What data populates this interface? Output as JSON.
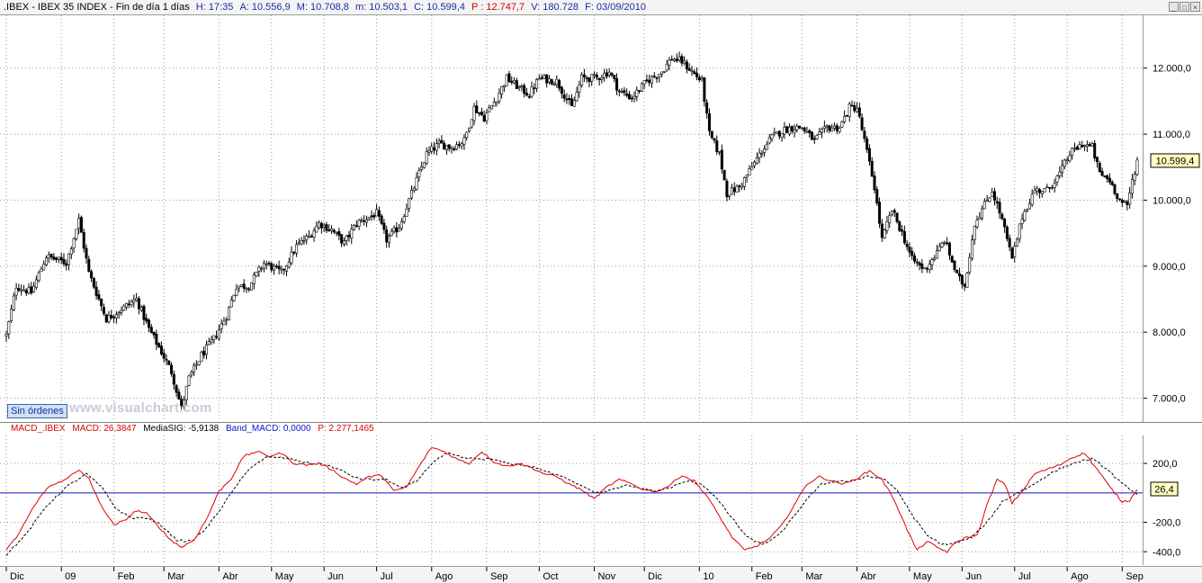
{
  "header": {
    "symbol": ".IBEX",
    "name": "IBEX 35 INDEX",
    "period": "Fin de día 1 días",
    "time": "H: 17:35",
    "open": "A: 10.556,9",
    "high": "M: 10.708,8",
    "low": "m: 10.503,1",
    "close": "C: 10.599,4",
    "p": "P : 12.747,7",
    "volume": "V: 180.728",
    "date": "F: 03/09/2010"
  },
  "window_buttons": [
    "_",
    "□",
    "×"
  ],
  "order_badge": "Sin órdenes",
  "watermark": "www.visualchart.com",
  "current_price_label": "10.599,4",
  "macd_header": {
    "title": "MACD_.IBEX",
    "macd": "MACD: 26,3847",
    "signal": "MediaSIG: -5,9138",
    "band": "Band_MACD: 0,0000",
    "p": "P: 2.277,1465"
  },
  "current_macd_label": "26,4",
  "colors": {
    "candle": "#000000",
    "macd_line": "#e00000",
    "signal_line": "#000000",
    "band_line": "#1010d0",
    "grid": "#9a9a9a",
    "label_bg": "#ffffc0"
  },
  "chart_data": [
    {
      "type": "candlestick",
      "title": "IBEX 35 INDEX",
      "y_ticks": [
        "12.000,0",
        "11.000,0",
        "10.000,0",
        "9.000,0",
        "8.000,0",
        "7.000,0"
      ],
      "y_tick_values": [
        12000,
        11000,
        10000,
        9000,
        8000,
        7000
      ],
      "ylim": [
        6640,
        12800
      ],
      "x_labels": [
        "Dic",
        "09",
        "Feb",
        "Mar",
        "Abr",
        "May",
        "Jun",
        "Jul",
        "Ago",
        "Sep",
        "Oct",
        "Nov",
        "Dic",
        "10",
        "Feb",
        "Mar",
        "Abr",
        "May",
        "Jun",
        "Jul",
        "Ago",
        "Sep"
      ],
      "x_label_days": [
        0,
        22,
        43,
        63,
        85,
        106,
        127,
        148,
        170,
        192,
        213,
        235,
        255,
        277,
        298,
        318,
        340,
        361,
        382,
        403,
        424,
        446
      ],
      "total_days": 452,
      "last_close": 10599.4,
      "grid": true,
      "anchors": [
        [
          0,
          7950
        ],
        [
          4,
          8700
        ],
        [
          10,
          8600
        ],
        [
          16,
          9150
        ],
        [
          24,
          9050
        ],
        [
          29,
          9700
        ],
        [
          33,
          8900
        ],
        [
          40,
          8200
        ],
        [
          48,
          8400
        ],
        [
          52,
          8500
        ],
        [
          57,
          8050
        ],
        [
          62,
          7700
        ],
        [
          66,
          7400
        ],
        [
          70,
          6850
        ],
        [
          73,
          7300
        ],
        [
          78,
          7650
        ],
        [
          83,
          7900
        ],
        [
          88,
          8250
        ],
        [
          92,
          8700
        ],
        [
          97,
          8700
        ],
        [
          103,
          9050
        ],
        [
          110,
          8900
        ],
        [
          116,
          9300
        ],
        [
          121,
          9450
        ],
        [
          125,
          9650
        ],
        [
          130,
          9550
        ],
        [
          135,
          9350
        ],
        [
          140,
          9650
        ],
        [
          148,
          9800
        ],
        [
          152,
          9400
        ],
        [
          157,
          9600
        ],
        [
          163,
          10200
        ],
        [
          168,
          10700
        ],
        [
          173,
          10850
        ],
        [
          178,
          10800
        ],
        [
          183,
          10900
        ],
        [
          187,
          11400
        ],
        [
          191,
          11250
        ],
        [
          196,
          11550
        ],
        [
          200,
          11850
        ],
        [
          205,
          11700
        ],
        [
          209,
          11600
        ],
        [
          213,
          11850
        ],
        [
          220,
          11800
        ],
        [
          226,
          11400
        ],
        [
          230,
          11850
        ],
        [
          236,
          11850
        ],
        [
          241,
          11950
        ],
        [
          245,
          11650
        ],
        [
          250,
          11550
        ],
        [
          256,
          11800
        ],
        [
          262,
          11950
        ],
        [
          266,
          12150
        ],
        [
          270,
          12100
        ],
        [
          274,
          11950
        ],
        [
          278,
          11800
        ],
        [
          281,
          11000
        ],
        [
          285,
          10700
        ],
        [
          288,
          10100
        ],
        [
          293,
          10200
        ],
        [
          298,
          10500
        ],
        [
          302,
          10750
        ],
        [
          306,
          10950
        ],
        [
          310,
          11050
        ],
        [
          314,
          11100
        ],
        [
          318,
          11100
        ],
        [
          323,
          10900
        ],
        [
          328,
          11100
        ],
        [
          333,
          11100
        ],
        [
          337,
          11400
        ],
        [
          340,
          11400
        ],
        [
          343,
          10900
        ],
        [
          347,
          10200
        ],
        [
          350,
          9400
        ],
        [
          354,
          9850
        ],
        [
          358,
          9500
        ],
        [
          362,
          9100
        ],
        [
          367,
          8950
        ],
        [
          372,
          9200
        ],
        [
          375,
          9400
        ],
        [
          380,
          8850
        ],
        [
          383,
          8700
        ],
        [
          387,
          9650
        ],
        [
          392,
          10000
        ],
        [
          394,
          10150
        ],
        [
          398,
          9700
        ],
        [
          402,
          9100
        ],
        [
          406,
          9750
        ],
        [
          411,
          10150
        ],
        [
          416,
          10150
        ],
        [
          421,
          10400
        ],
        [
          425,
          10700
        ],
        [
          430,
          10850
        ],
        [
          434,
          10800
        ],
        [
          437,
          10400
        ],
        [
          441,
          10300
        ],
        [
          445,
          10000
        ],
        [
          448,
          9900
        ],
        [
          450,
          10300
        ],
        [
          452,
          10599
        ]
      ]
    },
    {
      "type": "line",
      "title": "MACD_.IBEX",
      "y_ticks": [
        "200,0",
        "-200,0",
        "-400,0"
      ],
      "y_tick_values": [
        200,
        -200,
        -400
      ],
      "ylim": [
        -490,
        390
      ],
      "band_value": 0,
      "last_macd": 26.3847,
      "last_signal": -5.9138,
      "series": [
        {
          "name": "MACD",
          "anchors": [
            [
              0,
              -390
            ],
            [
              5,
              -280
            ],
            [
              10,
              -120
            ],
            [
              16,
              30
            ],
            [
              22,
              80
            ],
            [
              29,
              150
            ],
            [
              33,
              100
            ],
            [
              37,
              -60
            ],
            [
              43,
              -220
            ],
            [
              47,
              -190
            ],
            [
              52,
              -120
            ],
            [
              56,
              -140
            ],
            [
              61,
              -230
            ],
            [
              65,
              -310
            ],
            [
              70,
              -370
            ],
            [
              75,
              -320
            ],
            [
              80,
              -180
            ],
            [
              85,
              10
            ],
            [
              90,
              100
            ],
            [
              95,
              250
            ],
            [
              100,
              280
            ],
            [
              105,
              250
            ],
            [
              110,
              270
            ],
            [
              115,
              200
            ],
            [
              120,
              190
            ],
            [
              125,
              200
            ],
            [
              130,
              160
            ],
            [
              135,
              100
            ],
            [
              140,
              60
            ],
            [
              145,
              110
            ],
            [
              150,
              120
            ],
            [
              155,
              10
            ],
            [
              160,
              40
            ],
            [
              165,
              180
            ],
            [
              170,
              310
            ],
            [
              175,
              280
            ],
            [
              180,
              230
            ],
            [
              185,
              200
            ],
            [
              190,
              280
            ],
            [
              195,
              210
            ],
            [
              200,
              180
            ],
            [
              205,
              200
            ],
            [
              210,
              170
            ],
            [
              215,
              130
            ],
            [
              220,
              110
            ],
            [
              225,
              60
            ],
            [
              230,
              20
            ],
            [
              235,
              -40
            ],
            [
              240,
              40
            ],
            [
              245,
              90
            ],
            [
              250,
              60
            ],
            [
              255,
              20
            ],
            [
              260,
              10
            ],
            [
              265,
              50
            ],
            [
              270,
              120
            ],
            [
              275,
              80
            ],
            [
              280,
              -20
            ],
            [
              285,
              -160
            ],
            [
              290,
              -300
            ],
            [
              295,
              -390
            ],
            [
              300,
              -360
            ],
            [
              305,
              -310
            ],
            [
              310,
              -220
            ],
            [
              315,
              -80
            ],
            [
              320,
              60
            ],
            [
              325,
              110
            ],
            [
              330,
              80
            ],
            [
              335,
              60
            ],
            [
              340,
              100
            ],
            [
              345,
              150
            ],
            [
              350,
              90
            ],
            [
              355,
              -50
            ],
            [
              360,
              -250
            ],
            [
              364,
              -390
            ],
            [
              368,
              -330
            ],
            [
              372,
              -370
            ],
            [
              376,
              -400
            ],
            [
              380,
              -330
            ],
            [
              384,
              -300
            ],
            [
              388,
              -290
            ],
            [
              392,
              -80
            ],
            [
              396,
              90
            ],
            [
              399,
              60
            ],
            [
              402,
              -70
            ],
            [
              406,
              10
            ],
            [
              411,
              130
            ],
            [
              416,
              160
            ],
            [
              421,
              190
            ],
            [
              426,
              240
            ],
            [
              431,
              270
            ],
            [
              436,
              160
            ],
            [
              441,
              40
            ],
            [
              446,
              -60
            ],
            [
              449,
              -50
            ],
            [
              452,
              26
            ]
          ]
        },
        {
          "name": "MediaSIG",
          "anchors": [
            [
              0,
              -420
            ],
            [
              8,
              -280
            ],
            [
              16,
              -90
            ],
            [
              24,
              40
            ],
            [
              32,
              130
            ],
            [
              38,
              40
            ],
            [
              44,
              -110
            ],
            [
              50,
              -170
            ],
            [
              56,
              -170
            ],
            [
              62,
              -220
            ],
            [
              68,
              -320
            ],
            [
              74,
              -330
            ],
            [
              80,
              -240
            ],
            [
              86,
              -100
            ],
            [
              92,
              50
            ],
            [
              98,
              180
            ],
            [
              104,
              240
            ],
            [
              110,
              240
            ],
            [
              116,
              220
            ],
            [
              122,
              200
            ],
            [
              128,
              190
            ],
            [
              134,
              150
            ],
            [
              140,
              100
            ],
            [
              146,
              90
            ],
            [
              152,
              90
            ],
            [
              158,
              30
            ],
            [
              164,
              80
            ],
            [
              170,
              200
            ],
            [
              176,
              270
            ],
            [
              182,
              240
            ],
            [
              188,
              230
            ],
            [
              194,
              230
            ],
            [
              200,
              200
            ],
            [
              206,
              190
            ],
            [
              212,
              170
            ],
            [
              218,
              130
            ],
            [
              224,
              100
            ],
            [
              230,
              50
            ],
            [
              236,
              0
            ],
            [
              242,
              20
            ],
            [
              248,
              50
            ],
            [
              254,
              30
            ],
            [
              260,
              10
            ],
            [
              266,
              40
            ],
            [
              272,
              80
            ],
            [
              278,
              60
            ],
            [
              284,
              -40
            ],
            [
              290,
              -170
            ],
            [
              296,
              -300
            ],
            [
              302,
              -350
            ],
            [
              308,
              -300
            ],
            [
              314,
              -180
            ],
            [
              320,
              -40
            ],
            [
              326,
              60
            ],
            [
              332,
              80
            ],
            [
              338,
              80
            ],
            [
              344,
              110
            ],
            [
              350,
              100
            ],
            [
              356,
              20
            ],
            [
              362,
              -150
            ],
            [
              368,
              -290
            ],
            [
              374,
              -350
            ],
            [
              380,
              -340
            ],
            [
              386,
              -300
            ],
            [
              392,
              -200
            ],
            [
              398,
              -60
            ],
            [
              404,
              0
            ],
            [
              410,
              50
            ],
            [
              416,
              120
            ],
            [
              422,
              170
            ],
            [
              428,
              210
            ],
            [
              434,
              230
            ],
            [
              440,
              160
            ],
            [
              446,
              60
            ],
            [
              452,
              -6
            ]
          ]
        }
      ]
    }
  ]
}
